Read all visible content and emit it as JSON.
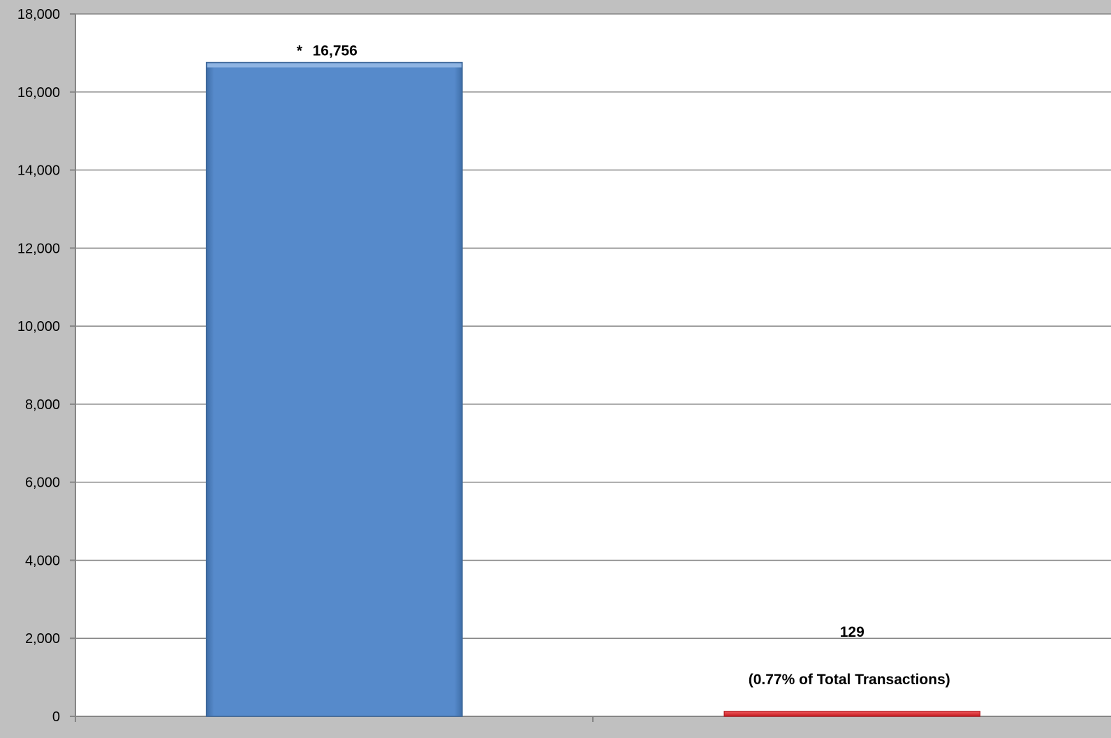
{
  "chart_data": {
    "type": "bar",
    "title": "",
    "xlabel": "",
    "ylabel": "",
    "categories": [
      "",
      ""
    ],
    "values": [
      16756,
      129
    ],
    "ylim": [
      0,
      18000
    ],
    "yticks": [
      0,
      2000,
      4000,
      6000,
      8000,
      10000,
      12000,
      14000,
      16000,
      18000
    ],
    "ytick_labels": [
      "0",
      "2,000",
      "4,000",
      "6,000",
      "8,000",
      "10,000",
      "12,000",
      "14,000",
      "16,000",
      "18,000"
    ],
    "grid": true,
    "legend": "none",
    "bars": [
      {
        "value": 16756,
        "label_prefix": "*",
        "label": "16,756",
        "color": "#568ACB"
      },
      {
        "value": 129,
        "label": "129",
        "note": "(0.77% of Total Transactions)",
        "color": "#E0262B"
      }
    ]
  },
  "colors": {
    "background": "#c0c0c0",
    "plot_area": "#ffffff",
    "gridline": "#868686"
  }
}
